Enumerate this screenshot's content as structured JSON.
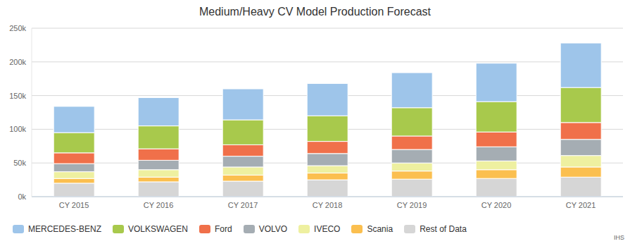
{
  "chart_data": {
    "type": "bar",
    "title": "Medium/Heavy CV Model Production Forecast",
    "stacked": true,
    "grid": true,
    "legend": "bottom",
    "annotations": [
      "IHS"
    ],
    "categories": [
      "CY 2015",
      "CY 2016",
      "CY 2017",
      "CY 2018",
      "CY 2019",
      "CY 2020",
      "CY 2021"
    ],
    "ylim": [
      0,
      250000
    ],
    "yticks": [
      {
        "value": 0,
        "label": "0k"
      },
      {
        "value": 50000,
        "label": "50k"
      },
      {
        "value": 100000,
        "label": "100k"
      },
      {
        "value": 150000,
        "label": "150k"
      },
      {
        "value": 200000,
        "label": "200k"
      },
      {
        "value": 250000,
        "label": "250k"
      }
    ],
    "series": [
      {
        "name": "MERCEDES-BENZ",
        "color": "#9ec5ea",
        "values": [
          39000,
          42000,
          46000,
          48000,
          52000,
          57000,
          66000
        ]
      },
      {
        "name": "VOLKSWAGEN",
        "color": "#a8c94c",
        "values": [
          30000,
          34000,
          37000,
          38000,
          42000,
          45000,
          52000
        ]
      },
      {
        "name": "Ford",
        "color": "#f0704a",
        "values": [
          16000,
          17000,
          17000,
          18000,
          20000,
          22000,
          25000
        ]
      },
      {
        "name": "VOLVO",
        "color": "#a5adb3",
        "values": [
          12000,
          14000,
          16000,
          18000,
          20000,
          21000,
          24000
        ]
      },
      {
        "name": "IVECO",
        "color": "#eef0a0",
        "values": [
          10000,
          11000,
          12000,
          11000,
          12000,
          13000,
          17000
        ]
      },
      {
        "name": "Scania",
        "color": "#fbbf4f",
        "values": [
          7000,
          7000,
          9000,
          10000,
          12000,
          13000,
          15000
        ]
      },
      {
        "name": "Rest of Data",
        "color": "#d6d6d6",
        "values": [
          20000,
          22000,
          23000,
          25000,
          26000,
          27000,
          29000
        ]
      }
    ]
  }
}
